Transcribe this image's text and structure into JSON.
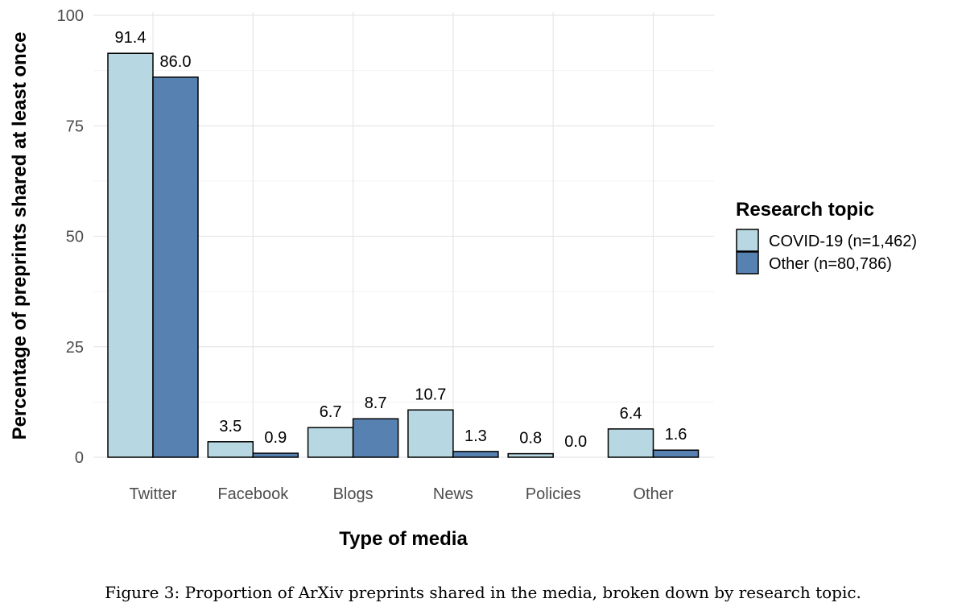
{
  "chart_data": {
    "type": "bar",
    "categories": [
      "Twitter",
      "Facebook",
      "Blogs",
      "News",
      "Policies",
      "Other"
    ],
    "series": [
      {
        "name": "COVID-19 (n=1,462)",
        "values": [
          91.4,
          3.5,
          6.7,
          10.7,
          0.8,
          6.4
        ],
        "labels": [
          "91.4",
          "3.5",
          "6.7",
          "10.7",
          "0.8",
          "6.4"
        ],
        "color": "#b7d8e3"
      },
      {
        "name": "Other (n=80,786)",
        "values": [
          86.0,
          0.9,
          8.7,
          1.3,
          0.0,
          1.6
        ],
        "labels": [
          "86.0",
          "0.9",
          "8.7",
          "1.3",
          "0.0",
          "1.6"
        ],
        "color": "#5681b0"
      }
    ],
    "xlabel": "Type of media",
    "ylabel": "Percentage of preprints shared at least once",
    "ylim": [
      0,
      100
    ],
    "yticks": [
      "0",
      "25",
      "50",
      "75",
      "100"
    ],
    "ytick_values": [
      0,
      25,
      50,
      75,
      100
    ],
    "legend_title": "Research topic",
    "legend_position": "right",
    "grid": true
  },
  "caption": "Figure 3: Proportion of ArXiv preprints shared in the media, broken down by research topic."
}
